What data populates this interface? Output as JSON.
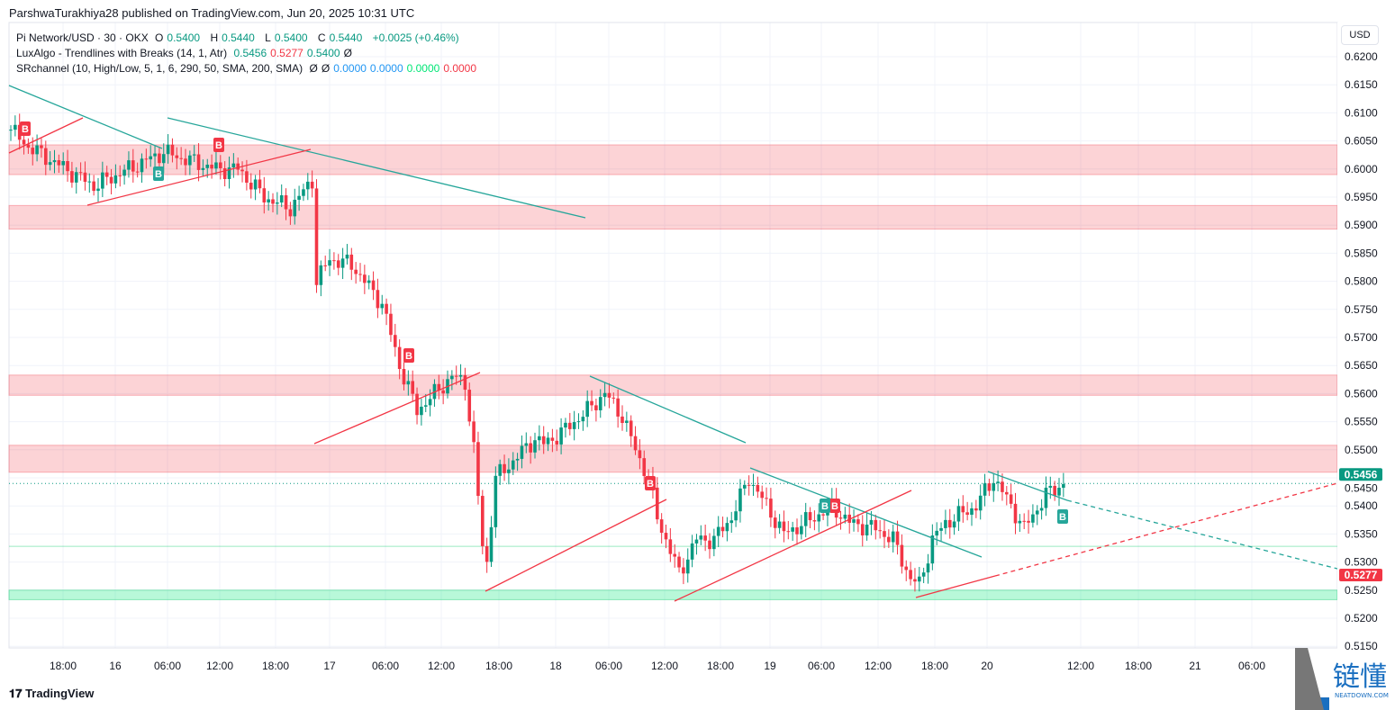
{
  "header": {
    "published": "ParshwaTurakhiya28 published on TradingView.com, Jun 20, 2025 10:31 UTC"
  },
  "legend": {
    "symbol": "Pi Network/USD · 30 · OKX",
    "o_label": "O",
    "o": "0.5400",
    "h_label": "H",
    "h": "0.5440",
    "l_label": "L",
    "l": "0.5400",
    "c_label": "C",
    "c": "0.5440",
    "change": "+0.0025 (+0.46%)",
    "ind1": "LuxAlgo - Trendlines with Breaks (14, 1, Atr)",
    "ind1_v1": "0.5456",
    "ind1_v2": "0.5277",
    "ind1_v3": "0.5400",
    "ind1_v4": "Ø",
    "ind2": "SRchannel (10, High/Low, 5, 1, 6, 290, 50, SMA, 200, SMA)",
    "ind2_v1": "Ø",
    "ind2_v2": "Ø",
    "ind2_v3": "0.0000",
    "ind2_v4": "0.0000",
    "ind2_v5": "0.0000",
    "ind2_v6": "0.0000"
  },
  "currency_button": "USD",
  "footer": {
    "brand": "TradingView",
    "watermark": "链懂 NEATDOWN.COM"
  },
  "chart_data": {
    "type": "candlestick",
    "ylim": [
      0.515,
      0.622
    ],
    "y_ticks": [
      "0.6200",
      "0.6150",
      "0.6100",
      "0.6050",
      "0.6000",
      "0.5950",
      "0.5900",
      "0.5850",
      "0.5800",
      "0.5750",
      "0.5700",
      "0.5650",
      "0.5600",
      "0.5550",
      "0.5500",
      "0.5450",
      "0.5400",
      "0.5350",
      "0.5300",
      "0.5250",
      "0.5200",
      "0.5150"
    ],
    "x_ticks": [
      "18:00",
      "16",
      "06:00",
      "12:00",
      "18:00",
      "17",
      "06:00",
      "12:00",
      "18:00",
      "18",
      "06:00",
      "12:00",
      "18:00",
      "19",
      "06:00",
      "12:00",
      "18:00",
      "20",
      "12:00",
      "18:00",
      "21",
      "06:00"
    ],
    "price_path": [
      [
        0,
        0.607
      ],
      [
        4,
        0.604
      ],
      [
        19,
        0.597
      ],
      [
        35,
        0.603
      ],
      [
        47,
        0.6
      ],
      [
        52,
        0.6
      ],
      [
        58,
        0.595
      ],
      [
        64,
        0.593
      ],
      [
        69,
        0.598
      ],
      [
        70,
        0.58
      ],
      [
        73,
        0.584
      ],
      [
        78,
        0.583
      ],
      [
        85,
        0.576
      ],
      [
        89,
        0.565
      ],
      [
        93,
        0.557
      ],
      [
        101,
        0.563
      ],
      [
        104,
        0.562
      ],
      [
        106,
        0.55
      ],
      [
        108,
        0.533
      ],
      [
        109,
        0.53
      ],
      [
        111,
        0.545
      ],
      [
        115,
        0.548
      ],
      [
        120,
        0.552
      ],
      [
        122,
        0.551
      ],
      [
        126,
        0.553
      ],
      [
        132,
        0.557
      ],
      [
        136,
        0.56
      ],
      [
        140,
        0.556
      ],
      [
        143,
        0.55
      ],
      [
        146,
        0.545
      ],
      [
        148,
        0.538
      ],
      [
        153,
        0.528
      ],
      [
        157,
        0.534
      ],
      [
        161,
        0.534
      ],
      [
        165,
        0.538
      ],
      [
        169,
        0.545
      ],
      [
        173,
        0.54
      ],
      [
        177,
        0.535
      ],
      [
        184,
        0.538
      ],
      [
        188,
        0.54
      ],
      [
        192,
        0.537
      ],
      [
        198,
        0.536
      ],
      [
        202,
        0.534
      ],
      [
        206,
        0.527
      ],
      [
        208,
        0.526
      ],
      [
        211,
        0.534
      ],
      [
        214,
        0.537
      ],
      [
        221,
        0.54
      ],
      [
        225,
        0.545
      ],
      [
        229,
        0.54
      ],
      [
        232,
        0.536
      ],
      [
        237,
        0.542
      ],
      [
        241,
        0.544
      ]
    ],
    "resistance_zones": [
      [
        0.599,
        0.6043
      ],
      [
        0.5893,
        0.5935
      ],
      [
        0.5597,
        0.5633
      ],
      [
        0.546,
        0.5508
      ]
    ],
    "support_zones": [
      [
        0.5233,
        0.525
      ]
    ],
    "support_line": 0.5328,
    "last_price": 0.544,
    "price_labels": [
      {
        "value": "0.5456",
        "color": "#089981"
      },
      {
        "value": "0.5277",
        "color": "#f23645"
      }
    ],
    "break_label": "B",
    "colors": {
      "up": "#089981",
      "down": "#f23645"
    }
  }
}
